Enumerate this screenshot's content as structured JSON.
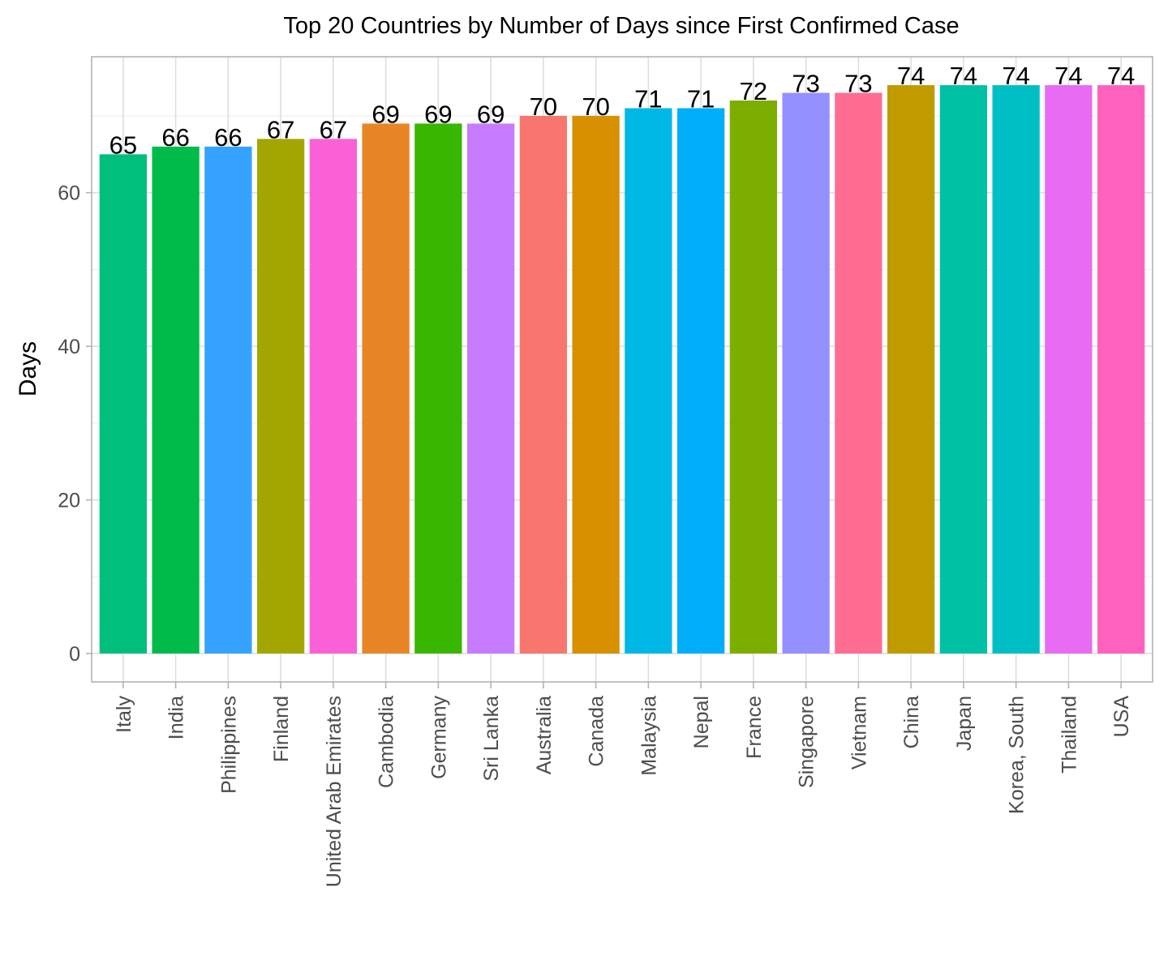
{
  "chart_data": {
    "type": "bar",
    "title": "Top 20 Countries by Number of Days since First Confirmed Case",
    "xlabel": "",
    "ylabel": "Days",
    "ylim": [
      -3.7,
      77.7
    ],
    "yticks": [
      0,
      20,
      40,
      60
    ],
    "grid": true,
    "legend": "none",
    "categories": [
      "Italy",
      "India",
      "Philippines",
      "Finland",
      "United Arab Emirates",
      "Cambodia",
      "Germany",
      "Sri Lanka",
      "Australia",
      "Canada",
      "Malaysia",
      "Nepal",
      "France",
      "Singapore",
      "Vietnam",
      "China",
      "Japan",
      "Korea, South",
      "Thailand",
      "USA"
    ],
    "values": [
      65,
      66,
      66,
      67,
      67,
      69,
      69,
      69,
      70,
      70,
      71,
      71,
      72,
      73,
      73,
      74,
      74,
      74,
      74,
      74
    ],
    "colors": [
      "#00BF7D",
      "#00BA4A",
      "#35A2FF",
      "#A3A500",
      "#FB61D7",
      "#E88526",
      "#39B600",
      "#C77CFF",
      "#F8766D",
      "#D89000",
      "#00B8E5",
      "#00AEFA",
      "#7CAE00",
      "#9590FF",
      "#FF6C91",
      "#C09B00",
      "#00C1A3",
      "#00BFC4",
      "#E76BF3",
      "#FF62BC"
    ]
  }
}
